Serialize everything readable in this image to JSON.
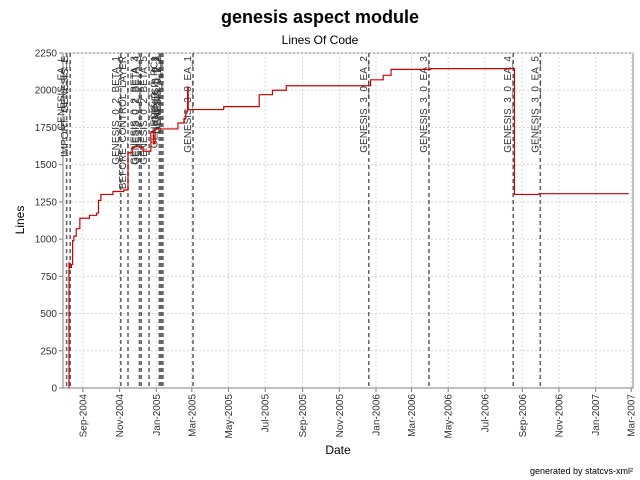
{
  "chart_data": {
    "type": "line",
    "title": "genesis aspect module",
    "subtitle": "Lines Of Code",
    "xlabel": "Date",
    "ylabel": "Lines",
    "footer": "generated by statcvs-xml²",
    "ylim": [
      0,
      2250
    ],
    "yticks": [
      0,
      250,
      500,
      750,
      1000,
      1250,
      1500,
      1750,
      2000,
      2250
    ],
    "xlim": [
      "2004-07-30",
      "2007-03-04"
    ],
    "xticks": [
      {
        "date": "2004-09-01",
        "label": "Sep-2004"
      },
      {
        "date": "2004-11-01",
        "label": "Nov-2004"
      },
      {
        "date": "2005-01-01",
        "label": "Jan-2005"
      },
      {
        "date": "2005-03-01",
        "label": "Mar-2005"
      },
      {
        "date": "2005-05-01",
        "label": "May-2005"
      },
      {
        "date": "2005-07-01",
        "label": "Jul-2005"
      },
      {
        "date": "2005-09-01",
        "label": "Sep-2005"
      },
      {
        "date": "2005-11-01",
        "label": "Nov-2005"
      },
      {
        "date": "2006-01-01",
        "label": "Jan-2006"
      },
      {
        "date": "2006-03-01",
        "label": "Mar-2006"
      },
      {
        "date": "2006-05-01",
        "label": "May-2006"
      },
      {
        "date": "2006-07-01",
        "label": "Jul-2006"
      },
      {
        "date": "2006-09-01",
        "label": "Sep-2006"
      },
      {
        "date": "2006-11-01",
        "label": "Nov-2006"
      },
      {
        "date": "2007-01-01",
        "label": "Jan-2007"
      },
      {
        "date": "2007-03-01",
        "label": "Mar-2007"
      }
    ],
    "grid": true,
    "series": [
      {
        "color": "#cc0000",
        "points": [
          [
            "2004-08-09",
            0
          ],
          [
            "2004-08-09",
            840
          ],
          [
            "2004-08-10",
            840
          ],
          [
            "2004-08-10",
            810
          ],
          [
            "2004-08-13",
            810
          ],
          [
            "2004-08-13",
            830
          ],
          [
            "2004-08-15",
            830
          ],
          [
            "2004-08-15",
            990
          ],
          [
            "2004-08-17",
            990
          ],
          [
            "2004-08-17",
            1020
          ],
          [
            "2004-08-21",
            1020
          ],
          [
            "2004-08-21",
            1070
          ],
          [
            "2004-08-27",
            1070
          ],
          [
            "2004-08-27",
            1140
          ],
          [
            "2004-09-12",
            1140
          ],
          [
            "2004-09-12",
            1160
          ],
          [
            "2004-09-24",
            1160
          ],
          [
            "2004-09-24",
            1175
          ],
          [
            "2004-09-27",
            1175
          ],
          [
            "2004-09-27",
            1260
          ],
          [
            "2004-10-01",
            1260
          ],
          [
            "2004-10-01",
            1300
          ],
          [
            "2004-10-21",
            1300
          ],
          [
            "2004-10-21",
            1320
          ],
          [
            "2004-11-08",
            1320
          ],
          [
            "2004-11-08",
            1330
          ],
          [
            "2004-11-15",
            1330
          ],
          [
            "2004-11-15",
            1580
          ],
          [
            "2004-11-22",
            1580
          ],
          [
            "2004-11-22",
            1620
          ],
          [
            "2004-12-10",
            1620
          ],
          [
            "2004-12-10",
            1590
          ],
          [
            "2004-12-23",
            1590
          ],
          [
            "2004-12-23",
            1720
          ],
          [
            "2004-12-27",
            1720
          ],
          [
            "2004-12-27",
            1640
          ],
          [
            "2004-12-30",
            1640
          ],
          [
            "2004-12-30",
            1740
          ],
          [
            "2005-02-06",
            1740
          ],
          [
            "2005-02-06",
            1780
          ],
          [
            "2005-02-16",
            1780
          ],
          [
            "2005-02-16",
            1810
          ],
          [
            "2005-02-19",
            1810
          ],
          [
            "2005-02-19",
            1860
          ],
          [
            "2005-02-22",
            1860
          ],
          [
            "2005-02-22",
            2020
          ],
          [
            "2005-02-23",
            2020
          ],
          [
            "2005-02-23",
            1870
          ],
          [
            "2005-04-23",
            1870
          ],
          [
            "2005-04-23",
            1890
          ],
          [
            "2005-06-21",
            1890
          ],
          [
            "2005-06-21",
            1970
          ],
          [
            "2005-07-13",
            1970
          ],
          [
            "2005-07-13",
            2000
          ],
          [
            "2005-08-05",
            2000
          ],
          [
            "2005-08-05",
            2030
          ],
          [
            "2005-12-23",
            2030
          ],
          [
            "2005-12-23",
            2070
          ],
          [
            "2006-01-13",
            2070
          ],
          [
            "2006-01-13",
            2100
          ],
          [
            "2006-01-26",
            2100
          ],
          [
            "2006-01-26",
            2140
          ],
          [
            "2006-04-02",
            2140
          ],
          [
            "2006-04-02",
            2145
          ],
          [
            "2006-08-19",
            2145
          ],
          [
            "2006-08-19",
            1300
          ],
          [
            "2006-09-29",
            1300
          ],
          [
            "2006-09-29",
            1305
          ],
          [
            "2007-02-25",
            1305
          ]
        ]
      }
    ],
    "markers": [
      {
        "date": "2004-08-05",
        "label": "GENESIS_EA_L"
      },
      {
        "date": "2004-08-11",
        "label": "IMPORT_GENESIS_E"
      },
      {
        "date": "2004-11-03",
        "label": "GENESIS_0_2_BETA_1"
      },
      {
        "date": "2004-11-15",
        "label": "BEFORE_CONTROL_LAYER"
      },
      {
        "date": "2004-12-04",
        "label": "GENESIS_0_2_BETA_3"
      },
      {
        "date": "2004-12-07",
        "label": "GENESIS_0_2_BETA_4"
      },
      {
        "date": "2004-12-20",
        "label": "GENESIS_0_2_BETA_5"
      },
      {
        "date": "2005-01-06",
        "label": "GENESIS_0_2_RC1"
      },
      {
        "date": "2005-01-08",
        "label": "GENESIS_0_2"
      },
      {
        "date": "2005-01-10",
        "label": "GENESIS_0_2_1"
      },
      {
        "date": "2005-01-12",
        "label": "GENESIS_0_2_2"
      },
      {
        "date": "2005-03-03",
        "label": "GENESIS_3_0_EA_1"
      },
      {
        "date": "2005-12-20",
        "label": "GENESIS_3_0_EA_2"
      },
      {
        "date": "2006-03-30",
        "label": "GENESIS_3_0_EA_3"
      },
      {
        "date": "2006-08-17",
        "label": "GENESIS_3_0_EA_4"
      },
      {
        "date": "2006-10-01",
        "label": "GENESIS_3_0_EA_5"
      }
    ]
  }
}
